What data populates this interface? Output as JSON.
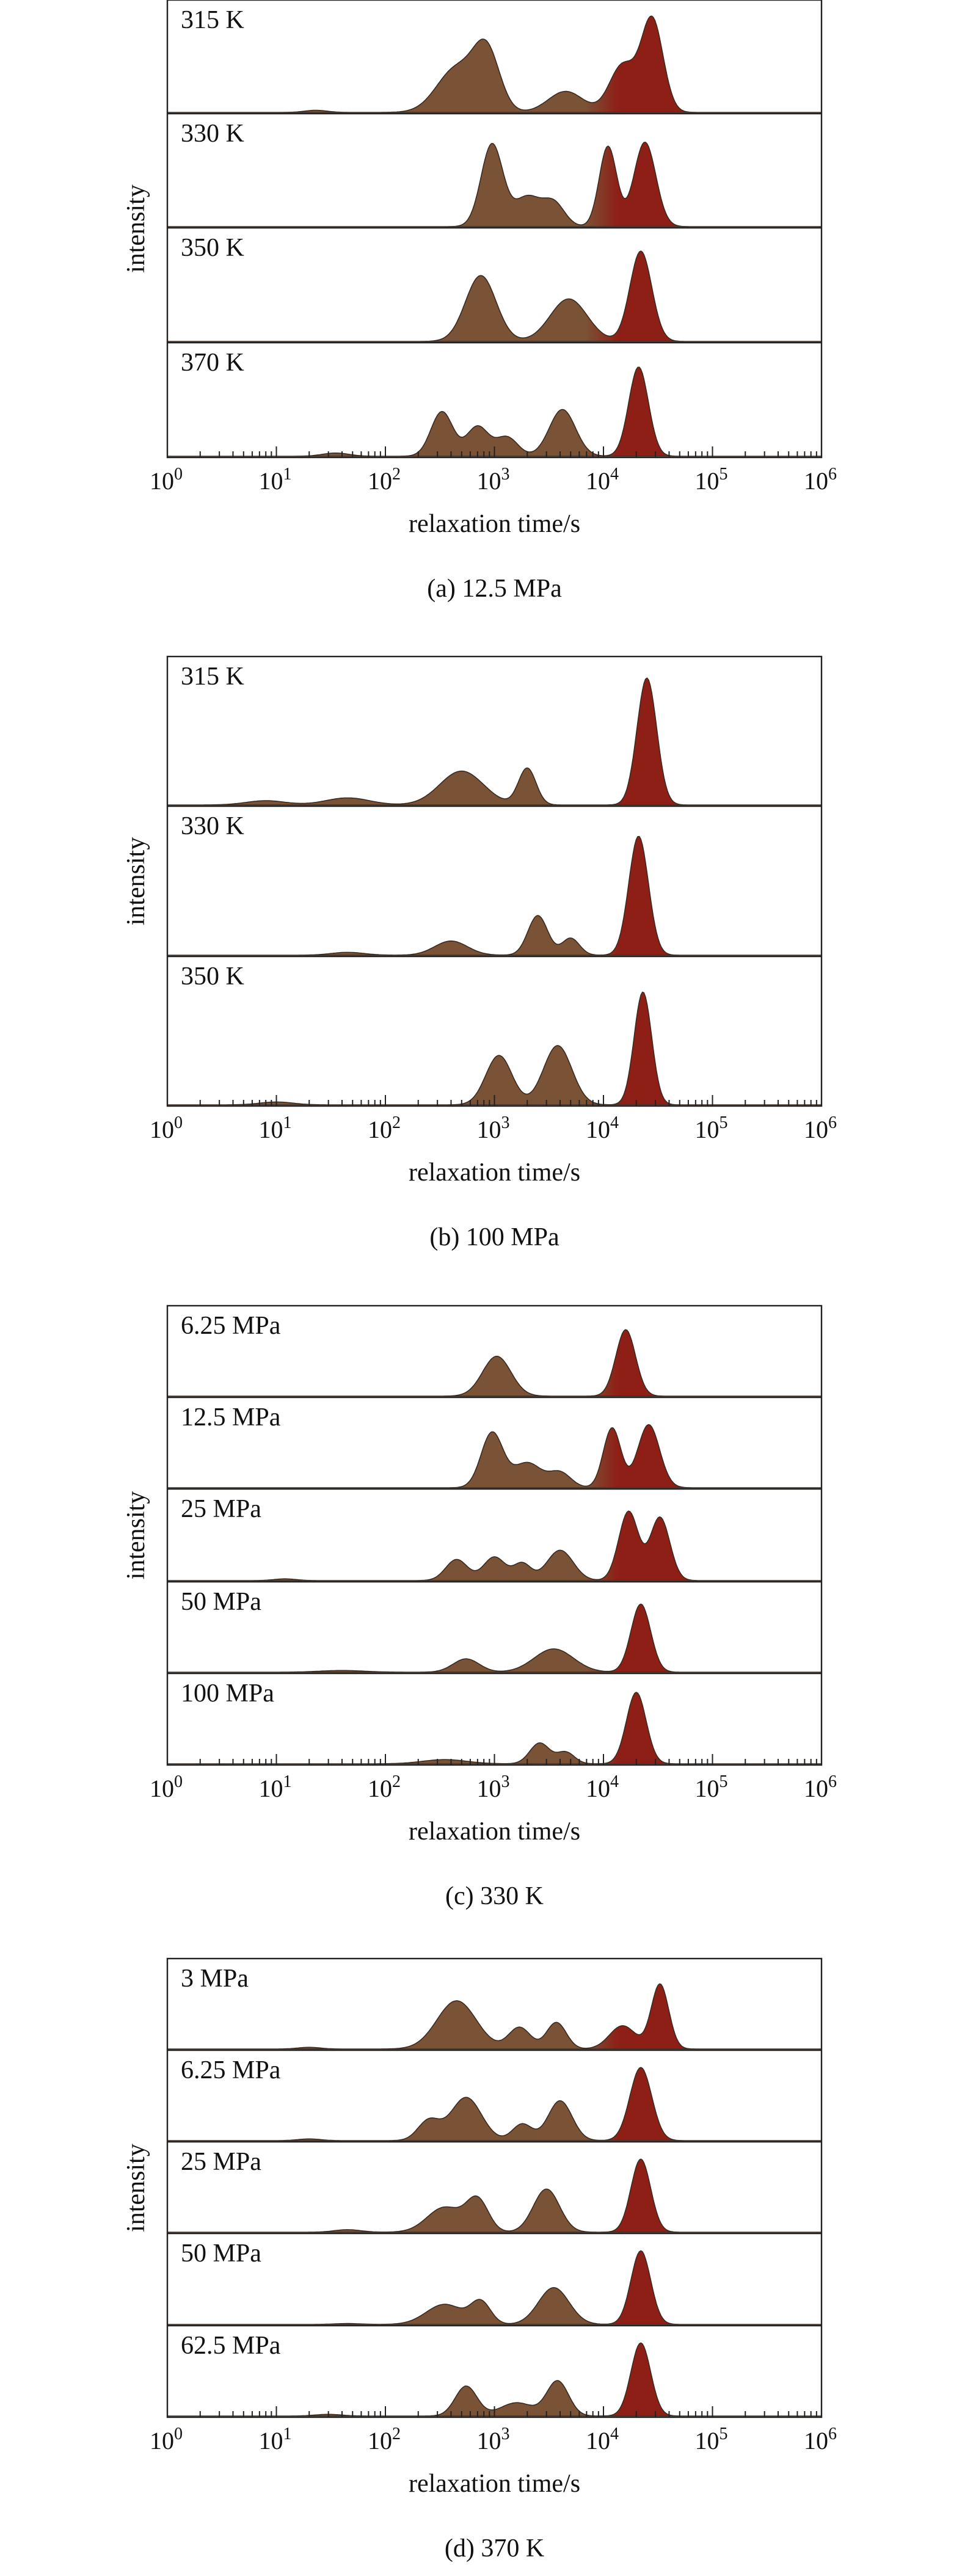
{
  "colors": {
    "peak_fill_brown": "#7a5236",
    "peak_fill_red": "#8e1f16",
    "peak_outline": "#3a2a20",
    "axis": "#222222"
  },
  "chart_data": [
    {
      "type": "area",
      "caption": "(a) 12.5 MPa",
      "xlabel": "relaxation time/s",
      "ylabel": "intensity",
      "x_scale": "log",
      "xlim": [
        1,
        1000000
      ],
      "x_tick_labels": [
        "10^0",
        "10^1",
        "10^2",
        "10^3",
        "10^4",
        "10^5",
        "10^6"
      ],
      "grid": false,
      "series": [
        {
          "name": "315 K",
          "peaks": [
            {
              "tau": 23,
              "amp": 0.02,
              "width": 0.1
            },
            {
              "tau": 450,
              "amp": 0.42,
              "width": 0.18
            },
            {
              "tau": 850,
              "amp": 0.55,
              "width": 0.12
            },
            {
              "tau": 4500,
              "amp": 0.2,
              "width": 0.16
            },
            {
              "tau": 15000,
              "amp": 0.45,
              "width": 0.12
            },
            {
              "tau": 28000,
              "amp": 0.88,
              "width": 0.1
            }
          ]
        },
        {
          "name": "330 K",
          "peaks": [
            {
              "tau": 950,
              "amp": 0.78,
              "width": 0.1
            },
            {
              "tau": 2000,
              "amp": 0.28,
              "width": 0.12
            },
            {
              "tau": 3500,
              "amp": 0.22,
              "width": 0.1
            },
            {
              "tau": 11000,
              "amp": 0.76,
              "width": 0.08
            },
            {
              "tau": 24000,
              "amp": 0.8,
              "width": 0.1
            }
          ]
        },
        {
          "name": "350 K",
          "peaks": [
            {
              "tau": 750,
              "amp": 0.62,
              "width": 0.14
            },
            {
              "tau": 4800,
              "amp": 0.4,
              "width": 0.17
            },
            {
              "tau": 22000,
              "amp": 0.85,
              "width": 0.1
            }
          ]
        },
        {
          "name": "370 K",
          "peaks": [
            {
              "tau": 35,
              "amp": 0.03,
              "width": 0.12
            },
            {
              "tau": 330,
              "amp": 0.42,
              "width": 0.1
            },
            {
              "tau": 700,
              "amp": 0.28,
              "width": 0.1
            },
            {
              "tau": 1300,
              "amp": 0.18,
              "width": 0.1
            },
            {
              "tau": 4200,
              "amp": 0.44,
              "width": 0.12
            },
            {
              "tau": 21000,
              "amp": 0.84,
              "width": 0.09
            }
          ]
        }
      ]
    },
    {
      "type": "area",
      "caption": "(b) 100 MPa",
      "xlabel": "relaxation time/s",
      "ylabel": "intensity",
      "x_scale": "log",
      "xlim": [
        1,
        1000000
      ],
      "x_tick_labels": [
        "10^0",
        "10^1",
        "10^2",
        "10^3",
        "10^4",
        "10^5",
        "10^6"
      ],
      "grid": false,
      "series": [
        {
          "name": "315 K",
          "peaks": [
            {
              "tau": 8,
              "amp": 0.03,
              "width": 0.18
            },
            {
              "tau": 45,
              "amp": 0.05,
              "width": 0.2
            },
            {
              "tau": 500,
              "amp": 0.24,
              "width": 0.2
            },
            {
              "tau": 2000,
              "amp": 0.26,
              "width": 0.08
            },
            {
              "tau": 25000,
              "amp": 0.9,
              "width": 0.09
            }
          ]
        },
        {
          "name": "330 K",
          "peaks": [
            {
              "tau": 45,
              "amp": 0.02,
              "width": 0.15
            },
            {
              "tau": 400,
              "amp": 0.1,
              "width": 0.15
            },
            {
              "tau": 2500,
              "amp": 0.28,
              "width": 0.09
            },
            {
              "tau": 5000,
              "amp": 0.12,
              "width": 0.08
            },
            {
              "tau": 21000,
              "amp": 0.84,
              "width": 0.09
            }
          ]
        },
        {
          "name": "350 K",
          "peaks": [
            {
              "tau": 10,
              "amp": 0.02,
              "width": 0.15
            },
            {
              "tau": 1100,
              "amp": 0.35,
              "width": 0.12
            },
            {
              "tau": 3800,
              "amp": 0.42,
              "width": 0.13
            },
            {
              "tau": 23000,
              "amp": 0.8,
              "width": 0.08
            }
          ]
        }
      ]
    },
    {
      "type": "area",
      "caption": "(c) 330 K",
      "xlabel": "relaxation time/s",
      "ylabel": "intensity",
      "x_scale": "log",
      "xlim": [
        1,
        1000000
      ],
      "x_tick_labels": [
        "10^0",
        "10^1",
        "10^2",
        "10^3",
        "10^4",
        "10^5",
        "10^6"
      ],
      "grid": false,
      "series": [
        {
          "name": "6.25 MPa",
          "peaks": [
            {
              "tau": 1050,
              "amp": 0.48,
              "width": 0.13
            },
            {
              "tau": 16000,
              "amp": 0.8,
              "width": 0.09
            }
          ]
        },
        {
          "name": "12.5 MPa",
          "peaks": [
            {
              "tau": 950,
              "amp": 0.66,
              "width": 0.1
            },
            {
              "tau": 2000,
              "amp": 0.3,
              "width": 0.13
            },
            {
              "tau": 4000,
              "amp": 0.18,
              "width": 0.1
            },
            {
              "tau": 12000,
              "amp": 0.72,
              "width": 0.08
            },
            {
              "tau": 26000,
              "amp": 0.76,
              "width": 0.1
            }
          ]
        },
        {
          "name": "25 MPa",
          "peaks": [
            {
              "tau": 12,
              "amp": 0.02,
              "width": 0.1
            },
            {
              "tau": 450,
              "amp": 0.25,
              "width": 0.1
            },
            {
              "tau": 1000,
              "amp": 0.28,
              "width": 0.1
            },
            {
              "tau": 1800,
              "amp": 0.2,
              "width": 0.08
            },
            {
              "tau": 4000,
              "amp": 0.36,
              "width": 0.12
            },
            {
              "tau": 17000,
              "amp": 0.82,
              "width": 0.09
            },
            {
              "tau": 33000,
              "amp": 0.75,
              "width": 0.09
            }
          ]
        },
        {
          "name": "50 MPa",
          "peaks": [
            {
              "tau": 40,
              "amp": 0.02,
              "width": 0.2
            },
            {
              "tau": 550,
              "amp": 0.16,
              "width": 0.12
            },
            {
              "tau": 3500,
              "amp": 0.28,
              "width": 0.18
            },
            {
              "tau": 22000,
              "amp": 0.82,
              "width": 0.09
            }
          ]
        },
        {
          "name": "100 MPa",
          "peaks": [
            {
              "tau": 350,
              "amp": 0.05,
              "width": 0.2
            },
            {
              "tau": 2600,
              "amp": 0.25,
              "width": 0.09
            },
            {
              "tau": 4500,
              "amp": 0.14,
              "width": 0.08
            },
            {
              "tau": 20000,
              "amp": 0.86,
              "width": 0.09
            }
          ]
        }
      ]
    },
    {
      "type": "area",
      "caption": "(d) 370 K",
      "xlabel": "relaxation time/s",
      "ylabel": "intensity",
      "x_scale": "log",
      "xlim": [
        1,
        1000000
      ],
      "x_tick_labels": [
        "10^0",
        "10^1",
        "10^2",
        "10^3",
        "10^4",
        "10^5",
        "10^6"
      ],
      "grid": false,
      "series": [
        {
          "name": "3 MPa",
          "peaks": [
            {
              "tau": 20,
              "amp": 0.02,
              "width": 0.1
            },
            {
              "tau": 450,
              "amp": 0.58,
              "width": 0.18
            },
            {
              "tau": 1700,
              "amp": 0.26,
              "width": 0.1
            },
            {
              "tau": 3700,
              "amp": 0.32,
              "width": 0.09
            },
            {
              "tau": 15000,
              "amp": 0.28,
              "width": 0.12
            },
            {
              "tau": 33000,
              "amp": 0.78,
              "width": 0.08
            }
          ]
        },
        {
          "name": "6.25 MPa",
          "peaks": [
            {
              "tau": 20,
              "amp": 0.02,
              "width": 0.1
            },
            {
              "tau": 250,
              "amp": 0.24,
              "width": 0.1
            },
            {
              "tau": 550,
              "amp": 0.52,
              "width": 0.14
            },
            {
              "tau": 1800,
              "amp": 0.2,
              "width": 0.09
            },
            {
              "tau": 4000,
              "amp": 0.48,
              "width": 0.11
            },
            {
              "tau": 22000,
              "amp": 0.88,
              "width": 0.1
            }
          ]
        },
        {
          "name": "25 MPa",
          "peaks": [
            {
              "tau": 45,
              "amp": 0.03,
              "width": 0.12
            },
            {
              "tau": 350,
              "amp": 0.3,
              "width": 0.16
            },
            {
              "tau": 700,
              "amp": 0.38,
              "width": 0.1
            },
            {
              "tau": 3000,
              "amp": 0.52,
              "width": 0.12
            },
            {
              "tau": 22000,
              "amp": 0.88,
              "width": 0.09
            }
          ]
        },
        {
          "name": "50 MPa",
          "peaks": [
            {
              "tau": 45,
              "amp": 0.01,
              "width": 0.12
            },
            {
              "tau": 350,
              "amp": 0.24,
              "width": 0.17
            },
            {
              "tau": 750,
              "amp": 0.26,
              "width": 0.09
            },
            {
              "tau": 3500,
              "amp": 0.44,
              "width": 0.14
            },
            {
              "tau": 22000,
              "amp": 0.88,
              "width": 0.09
            }
          ]
        },
        {
          "name": "62.5 MPa",
          "peaks": [
            {
              "tau": 30,
              "amp": 0.02,
              "width": 0.12
            },
            {
              "tau": 550,
              "amp": 0.36,
              "width": 0.1
            },
            {
              "tau": 1600,
              "amp": 0.16,
              "width": 0.15
            },
            {
              "tau": 3800,
              "amp": 0.42,
              "width": 0.1
            },
            {
              "tau": 22000,
              "amp": 0.88,
              "width": 0.09
            }
          ]
        }
      ]
    }
  ]
}
